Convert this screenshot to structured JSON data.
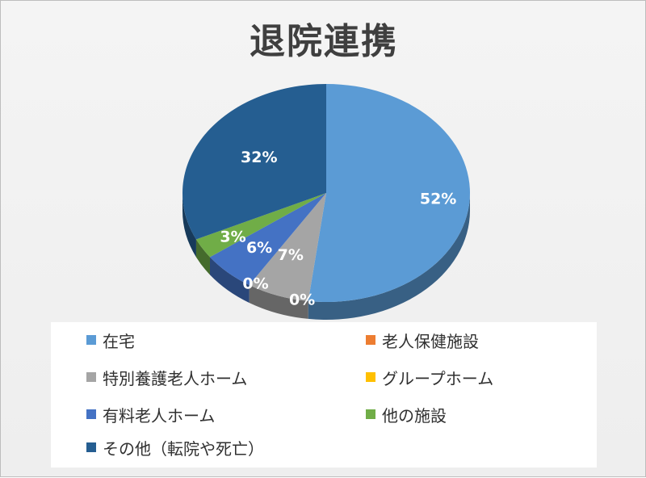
{
  "chart_data": {
    "type": "pie",
    "title": "退院連携",
    "categories": [
      "在宅",
      "老人保健施設",
      "特別養護老人ホーム",
      "グループホーム",
      "有料老人ホーム",
      "他の施設",
      "その他（転院や死亡）"
    ],
    "values": [
      52,
      0,
      7,
      0,
      6,
      3,
      32
    ],
    "data_labels": [
      "52%",
      "0%",
      "7%",
      "0%",
      "6%",
      "3%",
      "32%"
    ],
    "colors": [
      "#5b9bd5",
      "#ed7d31",
      "#a5a5a5",
      "#ffc000",
      "#4472c4",
      "#70ad47",
      "#255e91"
    ],
    "start_angle_deg": 0,
    "direction": "clockwise",
    "style": "3d",
    "legend": "bottom"
  }
}
